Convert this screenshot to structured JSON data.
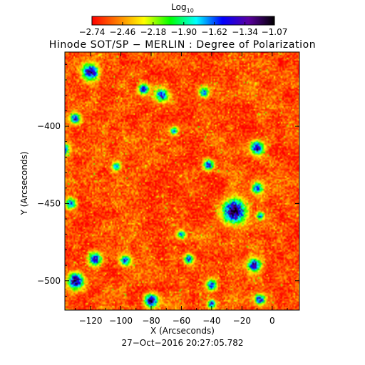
{
  "colorbar": {
    "title_base": "Log",
    "title_sub": "10",
    "ticks": [
      "−2.74",
      "−2.46",
      "−2.18",
      "−1.90",
      "−1.62",
      "−1.34",
      "−1.07"
    ],
    "range": [
      -2.74,
      -1.07
    ],
    "colors": [
      "#ff0000",
      "#ff7f00",
      "#ffff00",
      "#00ff00",
      "#00ffff",
      "#0000ff",
      "#5a00a0",
      "#000000"
    ]
  },
  "title": "Hinode SOT/SP − MERLIN : Degree of Polarization",
  "chart_data": {
    "type": "heatmap",
    "title": "Hinode SOT/SP − MERLIN : Degree of Polarization",
    "xlabel": "X (Arcseconds)",
    "ylabel": "Y (Arcseconds)",
    "xlim": [
      -137,
      18
    ],
    "ylim": [
      -519,
      -352
    ],
    "xticks": [
      -120,
      -100,
      -80,
      -60,
      -40,
      -20,
      0
    ],
    "xtick_labels": [
      "−120",
      "−100",
      "−80",
      "−60",
      "−40",
      "−20",
      "0"
    ],
    "yticks": [
      -400,
      -450,
      -500
    ],
    "ytick_labels": [
      "−400",
      "−450",
      "−500"
    ],
    "colorbar_label": "Log10",
    "value_range": [
      -2.74,
      -1.07
    ],
    "background_level": -2.6,
    "features": [
      {
        "x": -25,
        "y": -455,
        "r": 9,
        "peak": -1.07
      },
      {
        "x": -120,
        "y": -365,
        "r": 6,
        "peak": -1.2
      },
      {
        "x": -85,
        "y": -376,
        "r": 4,
        "peak": -1.4
      },
      {
        "x": -73,
        "y": -380,
        "r": 5,
        "peak": -1.5
      },
      {
        "x": -45,
        "y": -378,
        "r": 4,
        "peak": -1.6
      },
      {
        "x": -130,
        "y": -395,
        "r": 4,
        "peak": -1.4
      },
      {
        "x": -65,
        "y": -403,
        "r": 3,
        "peak": -1.6
      },
      {
        "x": -10,
        "y": -414,
        "r": 5,
        "peak": -1.3
      },
      {
        "x": -138,
        "y": -415,
        "r": 4,
        "peak": -1.3
      },
      {
        "x": -103,
        "y": -426,
        "r": 3,
        "peak": -1.6
      },
      {
        "x": -42,
        "y": -425,
        "r": 4,
        "peak": -1.4
      },
      {
        "x": -10,
        "y": -440,
        "r": 4,
        "peak": -1.5
      },
      {
        "x": -8,
        "y": -458,
        "r": 3,
        "peak": -1.6
      },
      {
        "x": -133,
        "y": -450,
        "r": 4,
        "peak": -1.5
      },
      {
        "x": -60,
        "y": -470,
        "r": 3,
        "peak": -1.6
      },
      {
        "x": -117,
        "y": -486,
        "r": 5,
        "peak": -1.4
      },
      {
        "x": -97,
        "y": -487,
        "r": 4,
        "peak": -1.5
      },
      {
        "x": -55,
        "y": -486,
        "r": 4,
        "peak": -1.6
      },
      {
        "x": -12,
        "y": -490,
        "r": 5,
        "peak": -1.3
      },
      {
        "x": -130,
        "y": -500,
        "r": 6,
        "peak": -1.2
      },
      {
        "x": -80,
        "y": -513,
        "r": 5,
        "peak": -1.2
      },
      {
        "x": -40,
        "y": -503,
        "r": 4,
        "peak": -1.5
      },
      {
        "x": -40,
        "y": -515,
        "r": 3,
        "peak": -1.4
      },
      {
        "x": -8,
        "y": -512,
        "r": 4,
        "peak": -1.4
      }
    ]
  },
  "footer": {
    "date": "27−Oct−2016 20:27:05.782"
  }
}
